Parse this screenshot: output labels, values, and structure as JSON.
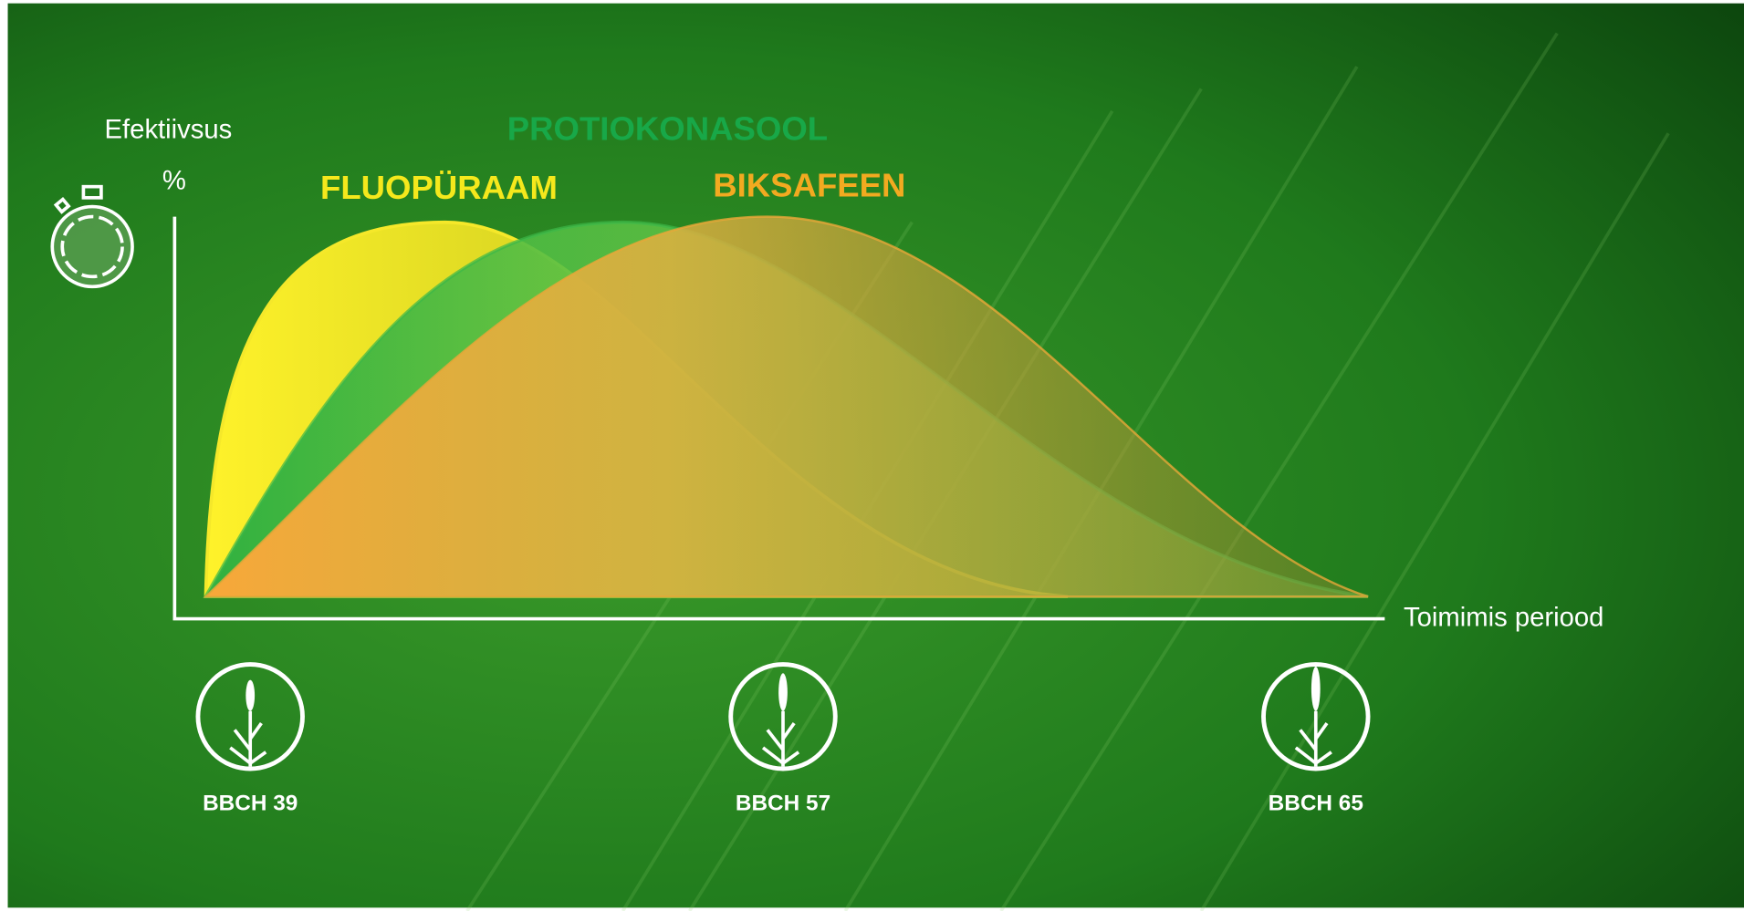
{
  "axes": {
    "y_label": "Efektiivsus",
    "y_unit": "%",
    "x_label": "Toimimis periood"
  },
  "products": [
    {
      "label": "PROTIOKONASOOL"
    },
    {
      "label": "FLUOPÜRAAM"
    },
    {
      "label": "BIKSAFEEN"
    }
  ],
  "stages": [
    {
      "label": "BBCH 39"
    },
    {
      "label": "BBCH 57"
    },
    {
      "label": "BBCH 65"
    }
  ]
}
